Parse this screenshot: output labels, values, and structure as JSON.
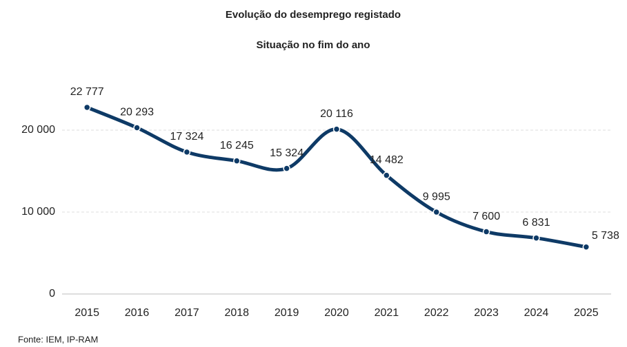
{
  "chart_data": {
    "type": "line",
    "title": "Evolução do desemprego registado",
    "subtitle": "Situação no fim do ano",
    "source": "Fonte: IEM, IP-RAM",
    "categories": [
      "2015",
      "2016",
      "2017",
      "2018",
      "2019",
      "2020",
      "2021",
      "2022",
      "2023",
      "2024",
      "2025"
    ],
    "values": [
      22777,
      20293,
      17324,
      16245,
      15324,
      20116,
      14482,
      9995,
      7600,
      6831,
      5738
    ],
    "value_labels": [
      "22 777",
      "20 293",
      "17 324",
      "16 245",
      "15 324",
      "20 116",
      "14 482",
      "9 995",
      "7 600",
      "6 831",
      "5 738"
    ],
    "color": "#0e3a66",
    "ylim": [
      0,
      25000
    ],
    "yticks": [
      0,
      {
        "value": 10000,
        "label": "10 000"
      },
      {
        "value": 20000,
        "label": "20 000"
      }
    ],
    "grid": true,
    "smooth": true
  }
}
